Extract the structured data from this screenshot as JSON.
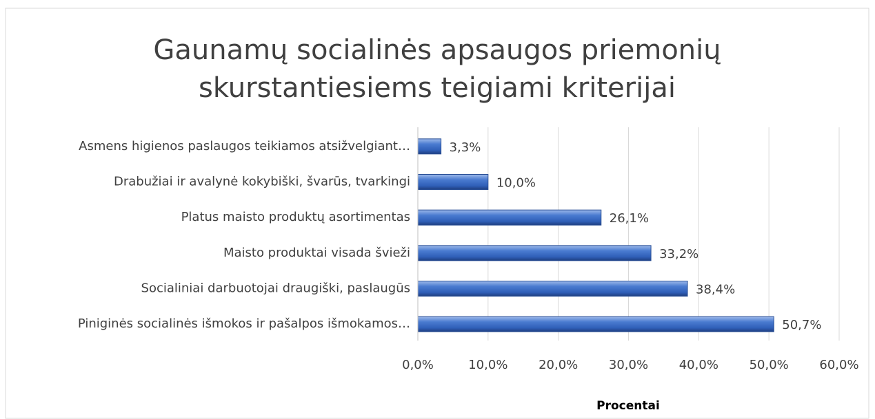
{
  "chart_data": {
    "type": "barh",
    "title": "Gaunamų socialinės apsaugos priemonių skurstantiesiems teigiami kriterijai",
    "x_label": "Procentai",
    "categories": [
      "Asmens higienos paslaugos teikiamos atsižvelgiant…",
      "Drabužiai ir avalynė kokybiški, švarūs, tvarkingi",
      "Platus maisto produktų asortimentas",
      "Maisto produktai visada švieži",
      "Socialiniai darbuotojai draugiški, paslaugūs",
      "Piniginės socialinės išmokos ir pašalpos išmokamos…"
    ],
    "values": [
      3.3,
      10.0,
      26.1,
      33.2,
      38.4,
      50.7
    ],
    "value_labels": [
      "3,3%",
      "10,0%",
      "26,1%",
      "33,2%",
      "38,4%",
      "50,7%"
    ],
    "color": "#4472c4",
    "xlim": [
      0,
      60
    ],
    "xticks": [
      {
        "value": 0,
        "label": "0,0%"
      },
      {
        "value": 10,
        "label": "10,0%"
      },
      {
        "value": 20,
        "label": "20,0%"
      },
      {
        "value": 30,
        "label": "30,0%"
      },
      {
        "value": 40,
        "label": "40,0%"
      },
      {
        "value": 50,
        "label": "50,0%"
      },
      {
        "value": 60,
        "label": "60,0%"
      }
    ],
    "grid": true
  }
}
